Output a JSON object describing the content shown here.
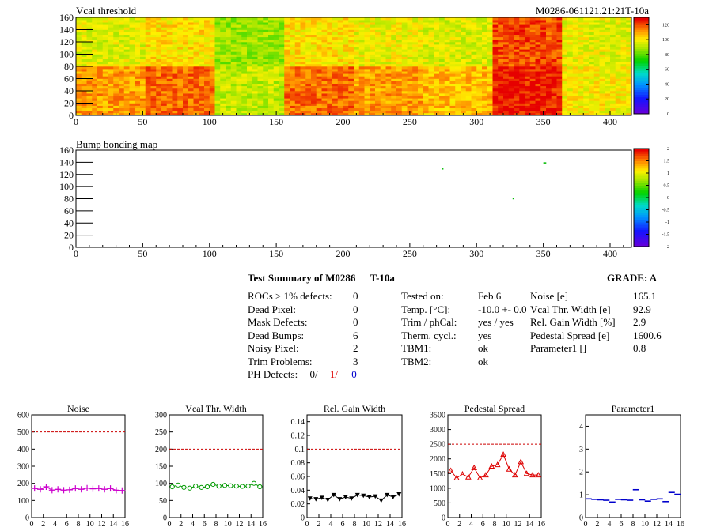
{
  "maps": {
    "vcal": {
      "title": "Vcal threshold",
      "module_label": "M0286-061121.21:21T-10a",
      "y_ticks": [
        "0",
        "20",
        "40",
        "60",
        "80",
        "100",
        "120",
        "140",
        "160"
      ],
      "x_ticks": [
        "0",
        "50",
        "100",
        "150",
        "200",
        "250",
        "300",
        "350",
        "400"
      ],
      "xlim": [
        0,
        416
      ],
      "ylim": [
        0,
        160
      ],
      "scale_ticks": [
        "0",
        "20",
        "40",
        "60",
        "80",
        "100",
        "120"
      ],
      "scale_range": [
        0,
        130
      ],
      "roc_means": {
        "top": [
          97,
          103,
          88,
          103,
          99,
          96,
          122,
          98
        ],
        "bottom": [
          112,
          118,
          93,
          118,
          112,
          108,
          127,
          101
        ]
      }
    },
    "bump": {
      "title": "Bump bonding map",
      "y_ticks": [
        "0",
        "20",
        "40",
        "60",
        "80",
        "100",
        "120",
        "140",
        "160"
      ],
      "x_ticks": [
        "0",
        "50",
        "100",
        "150",
        "200",
        "250",
        "300",
        "350",
        "400"
      ],
      "xlim": [
        0,
        416
      ],
      "ylim": [
        0,
        160
      ],
      "scale_ticks": [
        "-2",
        "-1.5",
        "-1",
        "-0.5",
        "0",
        "0.5",
        "1",
        "1.5",
        "2"
      ],
      "scale_range": [
        -2,
        2
      ],
      "points": [
        {
          "x": 274,
          "y": 130
        },
        {
          "x": 350,
          "y": 140
        },
        {
          "x": 351,
          "y": 140
        },
        {
          "x": 327,
          "y": 81
        }
      ]
    }
  },
  "summary": {
    "title": "Test Summary of M0286",
    "temp_label": "T-10a",
    "grade_label": "GRADE:  A",
    "defects": [
      {
        "label": "ROCs > 1% defects:",
        "value": "0"
      },
      {
        "label": "Dead Pixel:",
        "value": "0"
      },
      {
        "label": "Mask Defects:",
        "value": "0"
      },
      {
        "label": "Dead Bumps:",
        "value": "6"
      },
      {
        "label": "Noisy Pixel:",
        "value": "2"
      },
      {
        "label": "Trim Problems:",
        "value": "3"
      }
    ],
    "ph_defects": {
      "label": "PH Defects:",
      "a": "0/",
      "b": "1/",
      "c": "0",
      "color_a": "#000000",
      "color_b": "#dd0000",
      "color_c": "#0000cc"
    },
    "conditions": [
      {
        "label": "Tested on:",
        "value": "Feb 6"
      },
      {
        "label": "Temp. [°C]:",
        "value": "-10.0 +- 0.0"
      },
      {
        "label": "Trim / phCal:",
        "value": "yes / yes"
      },
      {
        "label": "Therm. cycl.:",
        "value": "yes"
      },
      {
        "label": "TBM1:",
        "value": "ok"
      },
      {
        "label": "TBM2:",
        "value": "ok"
      }
    ],
    "results": [
      {
        "label": "Noise [e]",
        "value": "165.1"
      },
      {
        "label": "Vcal Thr. Width [e]",
        "value": "92.9"
      },
      {
        "label": "Rel. Gain Width [%]",
        "value": "2.9"
      },
      {
        "label": "Pedestal Spread [e]",
        "value": "1600.6"
      },
      {
        "label": "Parameter1 []",
        "value": "0.8"
      }
    ]
  },
  "chart_data": [
    {
      "type": "line",
      "title": "Noise",
      "color": "#cc00cc",
      "marker": "cross",
      "x": [
        0,
        1,
        2,
        3,
        4,
        5,
        6,
        7,
        8,
        9,
        10,
        11,
        12,
        13,
        14,
        15
      ],
      "values": [
        170,
        165,
        180,
        160,
        165,
        160,
        162,
        170,
        165,
        172,
        168,
        170,
        165,
        170,
        160,
        158
      ],
      "ylim": [
        0,
        600
      ],
      "yticks": [
        "0",
        "100",
        "200",
        "300",
        "400",
        "500",
        "600"
      ],
      "xticks": [
        "0",
        "2",
        "4",
        "6",
        "8",
        "10",
        "12",
        "14",
        "16"
      ],
      "reference_line": 500
    },
    {
      "type": "line",
      "title": "Vcal Thr. Width",
      "color": "#009900",
      "marker": "circle",
      "x": [
        0,
        1,
        2,
        3,
        4,
        5,
        6,
        7,
        8,
        9,
        10,
        11,
        12,
        13,
        14,
        15
      ],
      "values": [
        90,
        95,
        88,
        86,
        92,
        88,
        90,
        97,
        92,
        94,
        93,
        92,
        91,
        92,
        100,
        90
      ],
      "ylim": [
        0,
        300
      ],
      "yticks": [
        "0",
        "50",
        "100",
        "150",
        "200",
        "250",
        "300"
      ],
      "xticks": [
        "0",
        "2",
        "4",
        "6",
        "8",
        "10",
        "12",
        "14",
        "16"
      ],
      "reference_line": 200
    },
    {
      "type": "line",
      "title": "Rel. Gain Width",
      "color": "#000000",
      "marker": "triangle-down",
      "x": [
        0,
        1,
        2,
        3,
        4,
        5,
        6,
        7,
        8,
        9,
        10,
        11,
        12,
        13,
        14,
        15
      ],
      "values": [
        0.028,
        0.027,
        0.029,
        0.026,
        0.033,
        0.027,
        0.03,
        0.028,
        0.033,
        0.032,
        0.03,
        0.031,
        0.025,
        0.033,
        0.03,
        0.034
      ],
      "ylim": [
        0,
        0.15
      ],
      "yticks": [
        "0",
        "0.02",
        "0.04",
        "0.06",
        "0.08",
        "0.1",
        "0.12",
        "0.14"
      ],
      "xticks": [
        "0",
        "2",
        "4",
        "6",
        "8",
        "10",
        "12",
        "14",
        "16"
      ],
      "reference_line": 0.1
    },
    {
      "type": "line",
      "title": "Pedestal Spread",
      "color": "#dd0000",
      "marker": "triangle-up",
      "x": [
        0,
        1,
        2,
        3,
        4,
        5,
        6,
        7,
        8,
        9,
        10,
        11,
        12,
        13,
        14,
        15
      ],
      "values": [
        1600,
        1350,
        1480,
        1380,
        1700,
        1350,
        1450,
        1750,
        1800,
        2150,
        1650,
        1450,
        1900,
        1500,
        1450,
        1450
      ],
      "ylim": [
        0,
        3500
      ],
      "yticks": [
        "0",
        "500",
        "1000",
        "1500",
        "2000",
        "2500",
        "3000",
        "3500"
      ],
      "xticks": [
        "0",
        "2",
        "4",
        "6",
        "8",
        "10",
        "12",
        "14",
        "16"
      ],
      "reference_line": 2500
    },
    {
      "type": "scatter",
      "title": "Parameter1",
      "color": "#0000cc",
      "marker": "dash",
      "x": [
        0,
        1,
        2,
        3,
        4,
        5,
        6,
        7,
        8,
        9,
        10,
        11,
        12,
        13,
        14,
        15
      ],
      "values": [
        0.82,
        0.8,
        0.78,
        0.76,
        0.68,
        0.8,
        0.78,
        0.76,
        1.22,
        0.78,
        0.72,
        0.8,
        0.82,
        0.7,
        1.1,
        1.02
      ],
      "ylim": [
        0,
        4.5
      ],
      "yticks": [
        "0",
        "1",
        "2",
        "3",
        "4"
      ],
      "xticks": [
        "0",
        "2",
        "4",
        "6",
        "8",
        "10",
        "12",
        "14",
        "16"
      ],
      "reference_line": null
    }
  ]
}
